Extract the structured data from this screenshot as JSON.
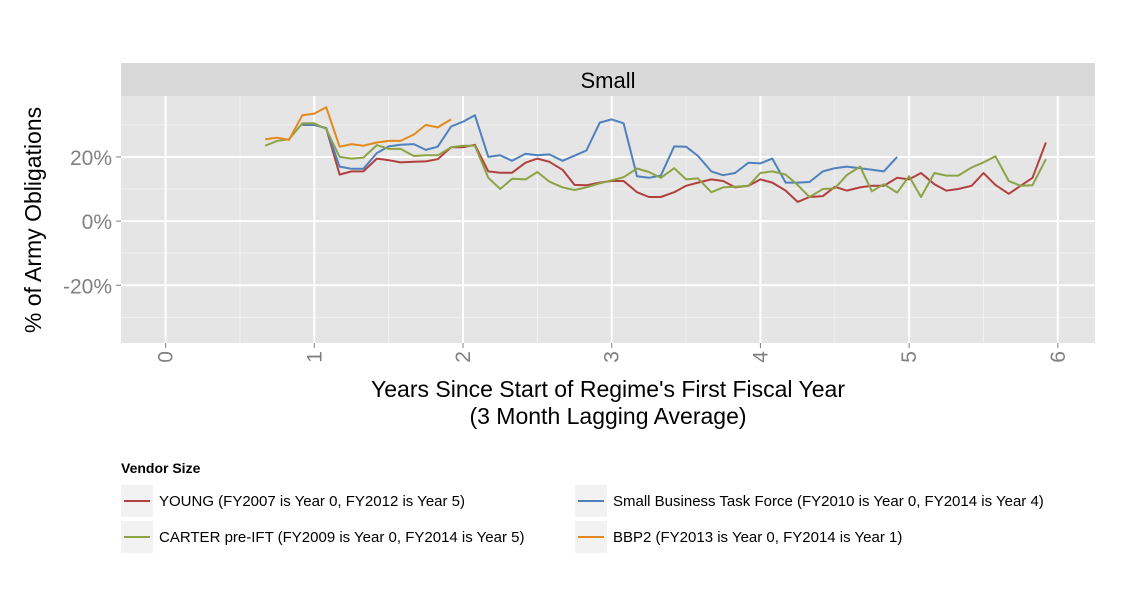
{
  "chart_data": {
    "type": "line",
    "facet_title": "Small",
    "xlabel": "Years Since Start of Regime's First Fiscal Year",
    "xlabel_sub": "(3 Month Lagging Average)",
    "ylabel": "% of Army Obligations",
    "xlim": [
      -0.3,
      6.25
    ],
    "ylim": [
      -38,
      39
    ],
    "x_ticks": [
      0,
      1,
      2,
      3,
      4,
      5,
      6
    ],
    "x_tick_labels": [
      "0",
      "1",
      "2",
      "3",
      "4",
      "5",
      "6"
    ],
    "y_ticks": [
      20,
      0,
      -20
    ],
    "y_tick_labels": [
      "20%",
      "0%",
      "-20%"
    ],
    "grid": true,
    "legend_title": "Vendor Size",
    "legend_position": "bottom",
    "series": [
      {
        "name": "YOUNG (FY2007 is Year 0, FY2012 is Year 5)",
        "color": "#B2403F",
        "x": [
          0.92,
          1.0,
          1.08,
          1.17,
          1.25,
          1.33,
          1.42,
          1.5,
          1.58,
          1.67,
          1.75,
          1.83,
          1.92,
          2.0,
          2.08,
          2.17,
          2.25,
          2.33,
          2.42,
          2.5,
          2.58,
          2.67,
          2.75,
          2.83,
          2.92,
          3.0,
          3.08,
          3.17,
          3.25,
          3.33,
          3.42,
          3.5,
          3.58,
          3.67,
          3.75,
          3.83,
          3.92,
          4.0,
          4.08,
          4.17,
          4.25,
          4.33,
          4.42,
          4.5,
          4.58,
          4.67,
          4.75,
          4.83,
          4.92,
          5.0,
          5.08,
          5.17,
          5.25,
          5.33,
          5.42,
          5.5,
          5.58,
          5.67,
          5.75,
          5.83,
          5.92
        ],
        "y": [
          30,
          30,
          29,
          14.5,
          15.5,
          15.5,
          19.5,
          19,
          18.3,
          18.5,
          18.6,
          19.3,
          23,
          23,
          23.8,
          15.5,
          15.1,
          15.1,
          18.2,
          19.5,
          18.5,
          16,
          11.3,
          11.2,
          12,
          12.5,
          12.5,
          9,
          7.5,
          7.5,
          9,
          11,
          12,
          13,
          12.5,
          10.5,
          11,
          13,
          12,
          9.5,
          6,
          7.5,
          7.8,
          10.7,
          9.5,
          10.5,
          11,
          11,
          13.5,
          13,
          15,
          11.5,
          9.5,
          10,
          11,
          15,
          11.3,
          8.5,
          11,
          13.5,
          24.5
        ]
      },
      {
        "name": "Small Business Task Force (FY2010 is Year 0, FY2014 is Year 4)",
        "color": "#4F81BD",
        "x": [
          0.92,
          1.0,
          1.08,
          1.17,
          1.25,
          1.33,
          1.42,
          1.5,
          1.58,
          1.67,
          1.75,
          1.83,
          1.92,
          2.0,
          2.08,
          2.17,
          2.25,
          2.33,
          2.42,
          2.5,
          2.58,
          2.67,
          2.75,
          2.83,
          2.92,
          3.0,
          3.08,
          3.17,
          3.25,
          3.33,
          3.42,
          3.5,
          3.58,
          3.67,
          3.75,
          3.83,
          3.92,
          4.0,
          4.08,
          4.17,
          4.25,
          4.33,
          4.42,
          4.5,
          4.58,
          4.67,
          4.75,
          4.83,
          4.92
        ],
        "y": [
          30,
          30,
          29,
          17,
          16.3,
          16.3,
          21.2,
          23.3,
          23.8,
          24,
          22.2,
          23.2,
          29.5,
          31,
          33,
          20,
          20.5,
          18.8,
          21,
          20.5,
          20.8,
          18.8,
          20.4,
          22,
          30.7,
          31.7,
          30.5,
          14,
          13.5,
          14.2,
          23.3,
          23.2,
          20.3,
          15.5,
          14.3,
          15,
          18.2,
          18,
          19.5,
          12,
          12,
          12.2,
          15.5,
          16.5,
          17,
          16.5,
          16,
          15.5,
          20
        ]
      },
      {
        "name": "CARTER pre-IFT (FY2009 is Year 0, FY2014 is Year 5)",
        "color": "#8CA445",
        "x": [
          0.67,
          0.75,
          0.83,
          0.92,
          1.0,
          1.08,
          1.17,
          1.25,
          1.33,
          1.42,
          1.5,
          1.58,
          1.67,
          1.75,
          1.83,
          1.92,
          2.0,
          2.08,
          2.17,
          2.25,
          2.33,
          2.42,
          2.5,
          2.58,
          2.67,
          2.75,
          2.83,
          2.92,
          3.0,
          3.08,
          3.17,
          3.25,
          3.33,
          3.42,
          3.5,
          3.58,
          3.67,
          3.75,
          3.83,
          3.92,
          4.0,
          4.08,
          4.17,
          4.25,
          4.33,
          4.42,
          4.5,
          4.58,
          4.67,
          4.75,
          4.83,
          4.92,
          5.0,
          5.08,
          5.17,
          5.25,
          5.33,
          5.42,
          5.5,
          5.58,
          5.67,
          5.75,
          5.83,
          5.92
        ],
        "y": [
          23.5,
          25,
          25.5,
          30.5,
          30.5,
          28.7,
          20,
          19.5,
          19.8,
          23.7,
          22.5,
          22.5,
          20.3,
          20.5,
          20.5,
          23,
          23.5,
          23.5,
          13.5,
          10,
          13.2,
          13,
          15.3,
          12.3,
          10.5,
          9.7,
          10.5,
          11.8,
          12.7,
          13.7,
          16.4,
          15.3,
          13.5,
          16.5,
          13,
          13.3,
          9,
          10.5,
          10.7,
          11,
          15,
          15.5,
          14.5,
          11.3,
          7.5,
          10,
          10.2,
          14.3,
          17,
          9.3,
          11.5,
          8.9,
          14,
          7.5,
          15,
          14.2,
          14.2,
          16.7,
          18.3,
          20.2,
          12.5,
          11,
          11.2,
          19.3
        ]
      },
      {
        "name": "BBP2 (FY2013 is Year 0, FY2014 is Year 1)",
        "color": "#E3891F",
        "x": [
          0.67,
          0.75,
          0.83,
          0.92,
          1.0,
          1.08,
          1.17,
          1.25,
          1.33,
          1.42,
          1.5,
          1.58,
          1.67,
          1.75,
          1.83,
          1.92
        ],
        "y": [
          25.5,
          26,
          25.3,
          33,
          33.5,
          35.5,
          23.2,
          24,
          23.5,
          24.5,
          25,
          25,
          27,
          30,
          29.2,
          31.7
        ]
      }
    ]
  }
}
